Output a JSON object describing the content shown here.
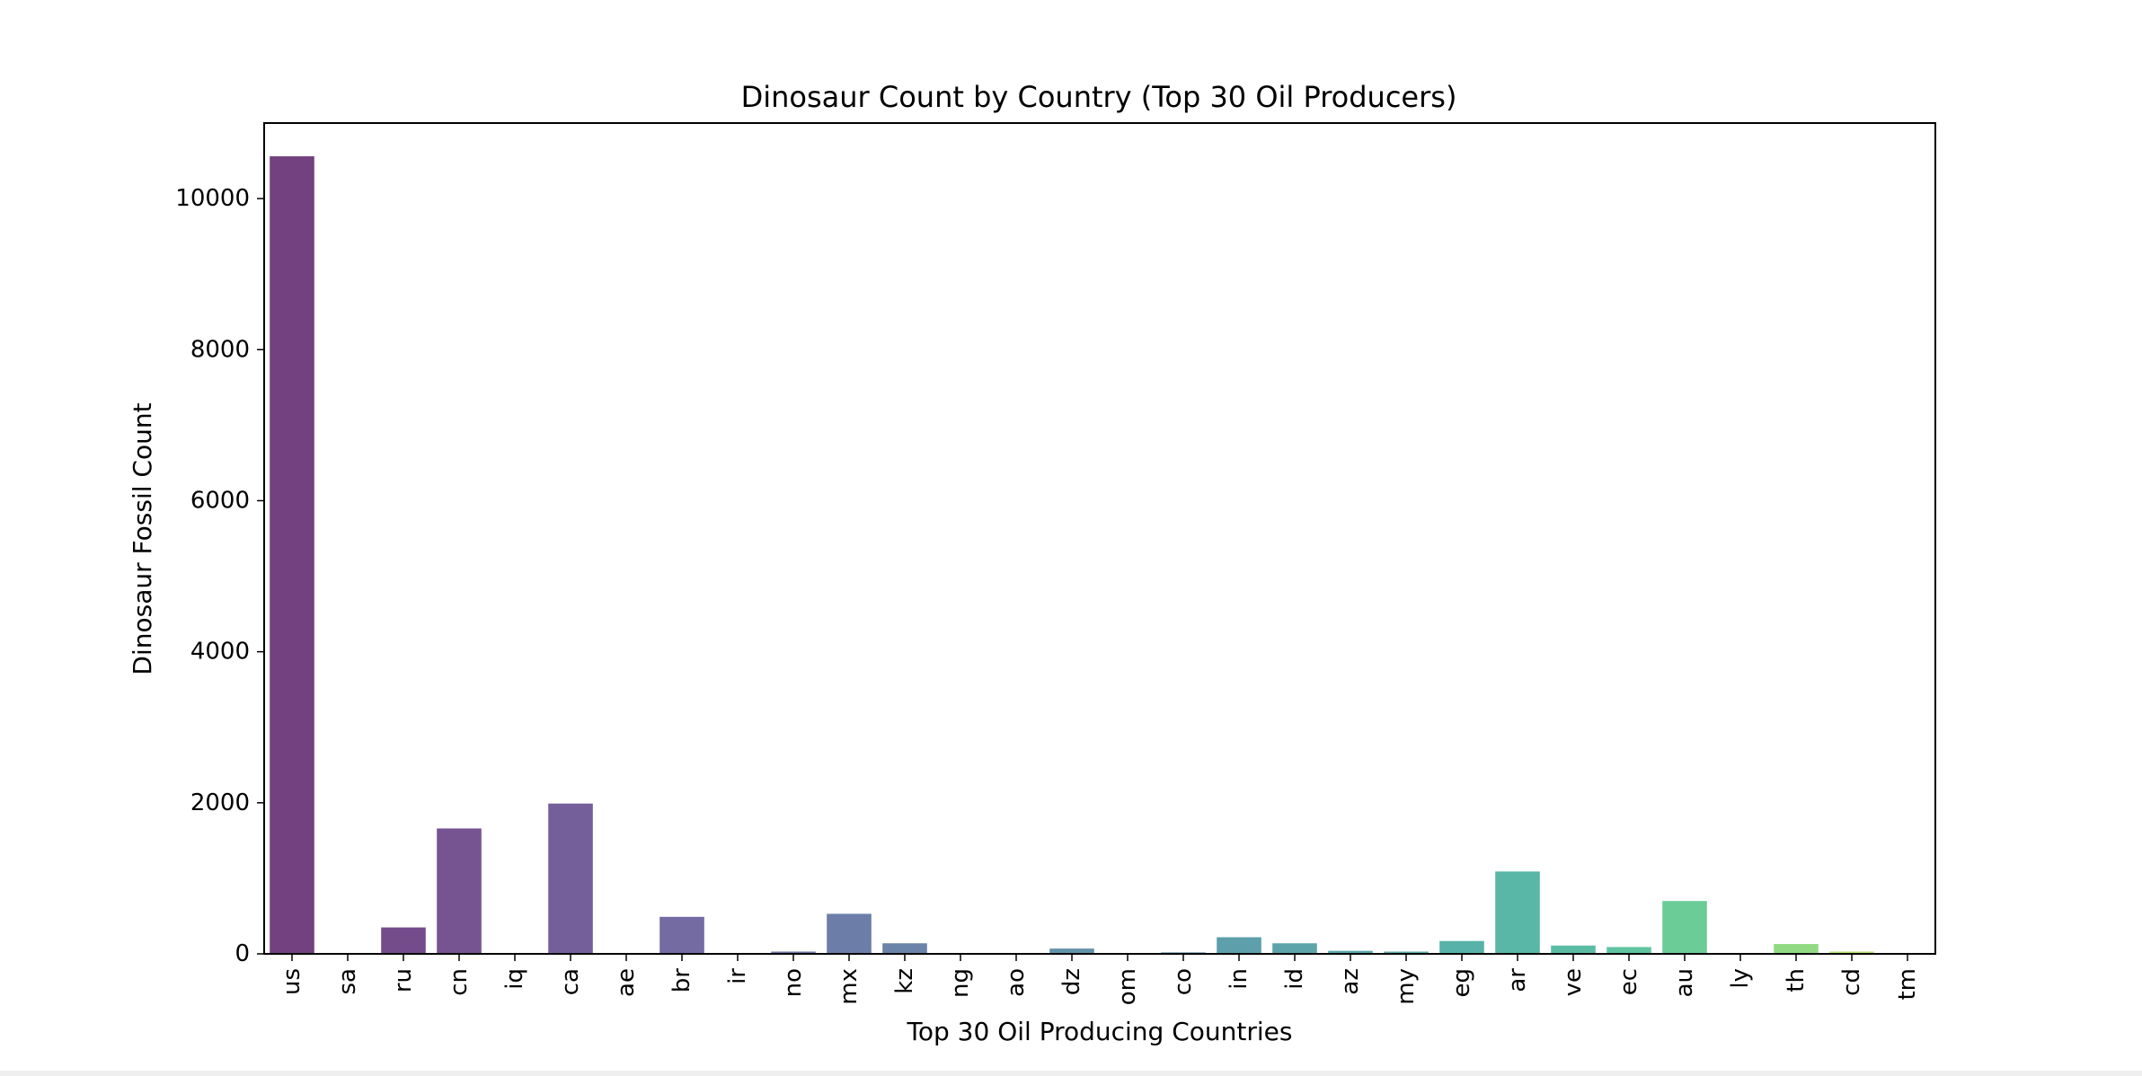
{
  "chart_data": {
    "type": "bar",
    "title": "Dinosaur Count by Country (Top 30 Oil Producers)",
    "xlabel": "Top 30 Oil Producing Countries",
    "ylabel": "Dinosaur Fossil Count",
    "ylim": [
      0,
      11000
    ],
    "yticks": [
      0,
      2000,
      4000,
      6000,
      8000,
      10000
    ],
    "grid": false,
    "legend": "none",
    "categories": [
      "us",
      "sa",
      "ru",
      "cn",
      "iq",
      "ca",
      "ae",
      "br",
      "ir",
      "no",
      "mx",
      "kz",
      "ng",
      "ao",
      "dz",
      "om",
      "co",
      "in",
      "id",
      "az",
      "my",
      "eg",
      "ar",
      "ve",
      "ec",
      "au",
      "ly",
      "th",
      "cd",
      "tm"
    ],
    "values": [
      10560,
      0,
      350,
      1660,
      0,
      1990,
      0,
      490,
      0,
      30,
      530,
      140,
      0,
      0,
      70,
      0,
      20,
      220,
      140,
      40,
      30,
      170,
      1090,
      110,
      90,
      700,
      0,
      130,
      30,
      0
    ],
    "colors": [
      "#440154",
      "#46085c",
      "#471063",
      "#481a6c",
      "#482173",
      "#472a7a",
      "#46307e",
      "#443983",
      "#424086",
      "#3e4989",
      "#3b528b",
      "#38598c",
      "#35608d",
      "#32678e",
      "#2f6d8e",
      "#2c728e",
      "#2a788e",
      "#277f8e",
      "#25858e",
      "#228b8d",
      "#20928c",
      "#1f988b",
      "#209f88",
      "#24a685",
      "#2ab07f",
      "#3bbb75",
      "#52c569",
      "#6ccd5a",
      "#9ad93d",
      "#c8e020"
    ],
    "color_opacity": 0.75
  }
}
